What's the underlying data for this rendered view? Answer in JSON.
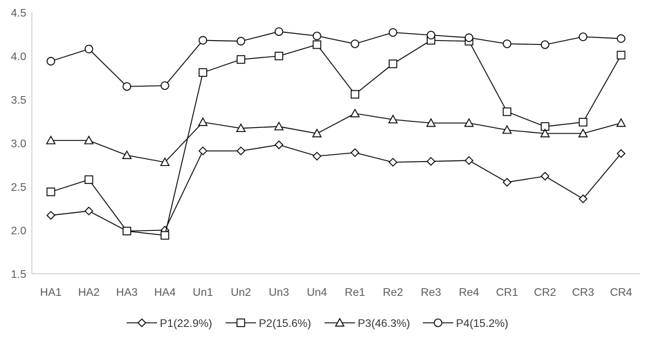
{
  "chart_data": {
    "type": "line",
    "title": "",
    "xlabel": "",
    "ylabel": "",
    "categories": [
      "HA1",
      "HA2",
      "HA3",
      "HA4",
      "Un1",
      "Un2",
      "Un3",
      "Un4",
      "Re1",
      "Re2",
      "Re3",
      "Re4",
      "CR1",
      "CR2",
      "CR3",
      "CR4"
    ],
    "ylim": [
      1.5,
      4.5
    ],
    "yticks": [
      1.5,
      2.0,
      2.5,
      3.0,
      3.5,
      4.0,
      4.5
    ],
    "ytick_labels": [
      "1.5",
      "2.0",
      "2.5",
      "3.0",
      "3.5",
      "4.0",
      "4.5"
    ],
    "grid": false,
    "legend_position": "bottom",
    "series": [
      {
        "name": "P1(22.9%)",
        "marker": "diamond",
        "values": [
          2.17,
          2.22,
          1.99,
          2.0,
          2.91,
          2.91,
          2.98,
          2.85,
          2.89,
          2.78,
          2.79,
          2.8,
          2.55,
          2.62,
          2.36,
          2.88
        ]
      },
      {
        "name": "P2(15.6%)",
        "marker": "square",
        "values": [
          2.44,
          2.58,
          1.99,
          1.94,
          3.81,
          3.96,
          4.0,
          4.13,
          3.56,
          3.91,
          4.18,
          4.17,
          3.36,
          3.19,
          3.24,
          4.01
        ]
      },
      {
        "name": "P3(46.3%)",
        "marker": "triangle",
        "values": [
          3.03,
          3.03,
          2.86,
          2.78,
          3.24,
          3.17,
          3.19,
          3.11,
          3.34,
          3.27,
          3.23,
          3.23,
          3.15,
          3.11,
          3.11,
          3.23
        ]
      },
      {
        "name": "P4(15.2%)",
        "marker": "circle",
        "values": [
          3.94,
          4.08,
          3.65,
          3.66,
          4.18,
          4.17,
          4.28,
          4.23,
          4.14,
          4.27,
          4.24,
          4.21,
          4.14,
          4.13,
          4.22,
          4.2
        ]
      }
    ],
    "colors": {
      "line": "#000000",
      "axis": "#bfbfbf",
      "tick_text": "#595959"
    }
  }
}
